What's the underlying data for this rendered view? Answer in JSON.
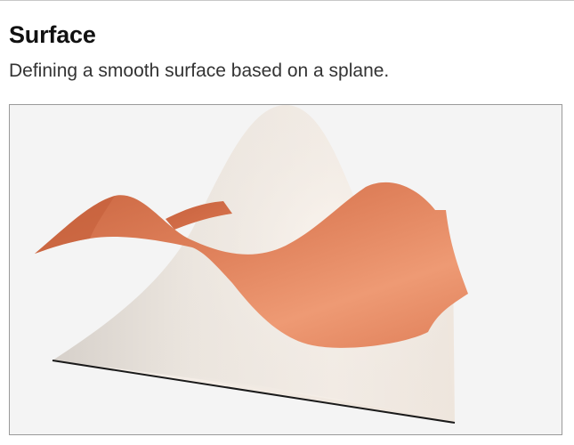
{
  "header": {
    "title": "Surface",
    "subtitle": "Defining a smooth surface based on a splane."
  },
  "scene": {
    "background_color": "#f4f4f4",
    "surfaces": [
      {
        "name": "mountain-surface",
        "color": "#f0e8e0"
      },
      {
        "name": "spline-surface",
        "color": "#e68a66"
      }
    ]
  }
}
